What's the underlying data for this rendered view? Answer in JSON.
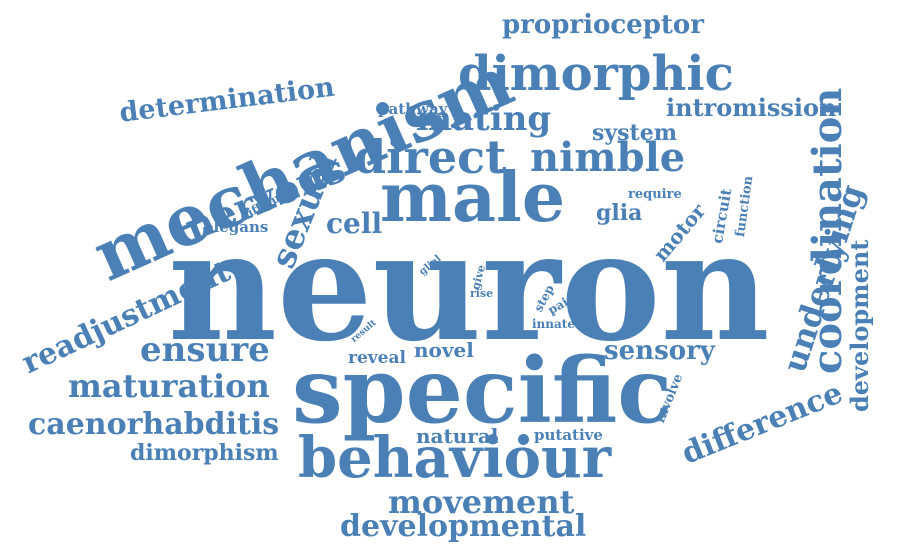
{
  "color": "#4a80b5",
  "words": [
    {
      "text": "neuron",
      "size": 150,
      "rot": 0
    },
    {
      "text": "specific",
      "size": 90,
      "rot": 0
    },
    {
      "text": "mechanism",
      "size": 70,
      "rot": -24
    },
    {
      "text": "male",
      "size": 68,
      "rot": 0
    },
    {
      "text": "behaviour",
      "size": 56,
      "rot": 0
    },
    {
      "text": "dimorphic",
      "size": 48,
      "rot": 0
    },
    {
      "text": "direct",
      "size": 46,
      "rot": 0
    },
    {
      "text": "coordination",
      "size": 40,
      "rot": -90
    },
    {
      "text": "nimble",
      "size": 40,
      "rot": 0
    },
    {
      "text": "nervous",
      "size": 38,
      "rot": -22
    },
    {
      "text": "ensure",
      "size": 34,
      "rot": 0
    },
    {
      "text": "mating",
      "size": 34,
      "rot": 0
    },
    {
      "text": "sexual",
      "size": 34,
      "rot": -68
    },
    {
      "text": "maturation",
      "size": 32,
      "rot": 0
    },
    {
      "text": "movement",
      "size": 32,
      "rot": 0
    },
    {
      "text": "developmental",
      "size": 30,
      "rot": 0
    },
    {
      "text": "caenorhabditis",
      "size": 30,
      "rot": 0
    },
    {
      "text": "difference",
      "size": 30,
      "rot": -22
    },
    {
      "text": "underlying",
      "size": 32,
      "rot": -72
    },
    {
      "text": "readjustment",
      "size": 30,
      "rot": -25
    },
    {
      "text": "determination",
      "size": 27,
      "rot": -7
    },
    {
      "text": "proprioceptor",
      "size": 26,
      "rot": 0
    },
    {
      "text": "cell",
      "size": 28,
      "rot": 0
    },
    {
      "text": "sensory",
      "size": 26,
      "rot": 0
    },
    {
      "text": "intromission",
      "size": 24,
      "rot": 0
    },
    {
      "text": "development",
      "size": 24,
      "rot": -90
    },
    {
      "text": "dimorphism",
      "size": 22,
      "rot": 0
    },
    {
      "text": "system",
      "size": 22,
      "rot": 0
    },
    {
      "text": "glia",
      "size": 22,
      "rot": 0
    },
    {
      "text": "natural",
      "size": 20,
      "rot": 0
    },
    {
      "text": "novel",
      "size": 20,
      "rot": 0
    },
    {
      "text": "motor",
      "size": 20,
      "rot": -50
    },
    {
      "text": "reveal",
      "size": 17,
      "rot": 0
    },
    {
      "text": "pathway",
      "size": 15,
      "rot": 0
    },
    {
      "text": "elegans",
      "size": 15,
      "rot": 0
    },
    {
      "text": "circuit",
      "size": 15,
      "rot": -80
    },
    {
      "text": "putative",
      "size": 15,
      "rot": 0
    },
    {
      "text": "function",
      "size": 13,
      "rot": -82
    },
    {
      "text": "require",
      "size": 13,
      "rot": 0
    },
    {
      "text": "involve",
      "size": 13,
      "rot": -68
    },
    {
      "text": "difficult",
      "size": 12,
      "rot": -28
    },
    {
      "text": "step",
      "size": 12,
      "rot": -62
    },
    {
      "text": "pair",
      "size": 12,
      "rot": -30
    },
    {
      "text": "innate",
      "size": 12,
      "rot": 0
    },
    {
      "text": "give",
      "size": 11,
      "rot": -75
    },
    {
      "text": "rise",
      "size": 11,
      "rot": 0
    },
    {
      "text": "glial",
      "size": 10,
      "rot": -40
    },
    {
      "text": "result",
      "size": 9,
      "rot": -40
    }
  ]
}
